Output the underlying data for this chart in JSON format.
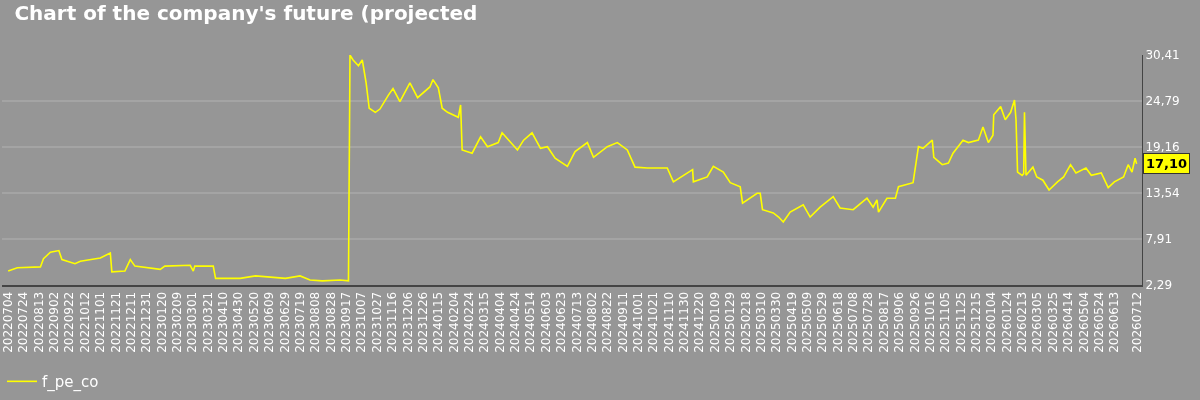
{
  "chart_data": {
    "type": "line",
    "title": "Chart of the company's future (projected",
    "x": [
      "2022-07-04",
      "2022-07-16",
      "2022-08-15",
      "2022-08-19",
      "2022-08-28",
      "2022-09-08",
      "2022-09-12",
      "2022-09-29",
      "2022-10-06",
      "2022-11-01",
      "2022-11-14",
      "2022-11-16",
      "2022-12-03",
      "2022-12-10",
      "2022-12-16",
      "2023-01-18",
      "2023-01-24",
      "2023-02-26",
      "2023-03-02",
      "2023-03-04",
      "2023-03-28",
      "2023-03-31",
      "2023-05-02",
      "2023-05-22",
      "2023-06-30",
      "2023-07-19",
      "2023-08-01",
      "2023-08-17",
      "2023-09-09",
      "2023-09-20",
      "2023-09-22",
      "2023-09-26",
      "2023-10-03",
      "2023-10-08",
      "2023-10-13",
      "2023-10-17",
      "2023-10-25",
      "2023-10-31",
      "2023-11-11",
      "2023-11-17",
      "2023-11-26",
      "2023-12-09",
      "2023-12-19",
      "2024-01-04",
      "2024-01-08",
      "2024-01-15",
      "2024-01-20",
      "2024-01-27",
      "2024-02-10",
      "2024-02-13",
      "2024-02-15",
      "2024-02-28",
      "2024-03-10",
      "2024-03-19",
      "2024-04-02",
      "2024-04-07",
      "2024-04-27",
      "2024-05-05",
      "2024-05-16",
      "2024-05-27",
      "2024-06-05",
      "2024-06-15",
      "2024-07-01",
      "2024-07-11",
      "2024-07-27",
      "2024-08-04",
      "2024-08-22",
      "2024-09-04",
      "2024-09-17",
      "2024-09-27",
      "2024-10-13",
      "2024-11-08",
      "2024-11-16",
      "2024-12-11",
      "2024-12-12",
      "2024-12-30",
      "2025-01-07",
      "2025-01-20",
      "2025-01-29",
      "2025-02-11",
      "2025-02-14",
      "2025-03-05",
      "2025-03-09",
      "2025-03-12",
      "2025-03-26",
      "2025-04-02",
      "2025-04-08",
      "2025-04-17",
      "2025-05-04",
      "2025-05-13",
      "2025-05-26",
      "2025-06-12",
      "2025-06-21",
      "2025-07-08",
      "2025-07-26",
      "2025-08-03",
      "2025-08-08",
      "2025-08-10",
      "2025-08-21",
      "2025-09-01",
      "2025-09-05",
      "2025-09-24",
      "2025-10-01",
      "2025-10-07",
      "2025-10-19",
      "2025-10-21",
      "2025-11-01",
      "2025-11-09",
      "2025-11-15",
      "2025-11-28",
      "2025-12-05",
      "2025-12-18",
      "2025-12-24",
      "2025-12-31",
      "2026-01-06",
      "2026-01-07",
      "2026-01-16",
      "2026-01-22",
      "2026-01-29",
      "2026-02-03",
      "2026-02-05",
      "2026-02-07",
      "2026-02-13",
      "2026-02-15",
      "2026-02-16",
      "2026-02-18",
      "2026-02-27",
      "2026-03-04",
      "2026-03-12",
      "2026-03-20",
      "2026-03-31",
      "2026-04-08",
      "2026-04-17",
      "2026-04-24",
      "2026-05-07",
      "2026-05-14",
      "2026-05-27",
      "2026-06-05",
      "2026-06-13",
      "2026-06-25",
      "2026-07-01",
      "2026-07-06",
      "2026-07-10",
      "2026-07-12"
    ],
    "series": [
      {
        "name": "f_pe_co",
        "color": "#ffff00",
        "values": [
          4.0,
          4.4,
          4.5,
          5.5,
          6.3,
          6.5,
          5.4,
          4.9,
          5.2,
          5.6,
          6.2,
          3.9,
          4.0,
          5.4,
          4.6,
          4.2,
          4.6,
          4.7,
          4.0,
          4.6,
          4.6,
          3.1,
          3.1,
          3.4,
          3.1,
          3.4,
          2.9,
          2.8,
          2.9,
          2.8,
          30.4,
          29.8,
          29.1,
          29.8,
          27.0,
          23.9,
          23.4,
          23.8,
          25.5,
          26.3,
          24.7,
          27.0,
          25.2,
          26.5,
          27.4,
          26.4,
          23.9,
          23.4,
          22.8,
          24.3,
          18.8,
          18.4,
          20.4,
          19.2,
          19.7,
          20.9,
          18.8,
          20.0,
          20.9,
          19.0,
          19.2,
          17.8,
          16.8,
          18.6,
          19.7,
          17.9,
          19.2,
          19.7,
          18.8,
          16.7,
          16.6,
          16.6,
          14.9,
          16.4,
          14.9,
          15.5,
          16.8,
          16.1,
          14.8,
          14.3,
          12.3,
          13.5,
          13.5,
          11.5,
          11.1,
          10.6,
          10.0,
          11.2,
          12.1,
          10.6,
          11.8,
          13.1,
          11.7,
          11.5,
          12.9,
          11.8,
          12.7,
          11.2,
          12.9,
          12.9,
          14.3,
          14.8,
          19.2,
          19.0,
          20.0,
          17.9,
          17.0,
          17.2,
          18.4,
          20.0,
          19.7,
          20.0,
          21.6,
          19.7,
          20.6,
          23.1,
          24.1,
          22.5,
          23.4,
          24.9,
          22.5,
          16.1,
          15.7,
          15.9,
          23.4,
          15.7,
          16.7,
          15.5,
          15.1,
          13.9,
          14.9,
          15.5,
          17.0,
          16.0,
          16.6,
          15.7,
          16.0,
          14.2,
          14.9,
          15.5,
          17.0,
          16.1,
          17.8,
          17.1
        ]
      }
    ],
    "annotations": [
      {
        "text": "17,10",
        "x": "2026-07-12",
        "y": 17.1
      }
    ],
    "xlim": [
      "2022-06-26",
      "2026-07-19"
    ],
    "xticks": [
      {
        "value": "2022-07-04",
        "label": "20220704"
      },
      {
        "value": "2022-07-24",
        "label": "20220724"
      },
      {
        "value": "2022-08-13",
        "label": "20220813"
      },
      {
        "value": "2022-09-02",
        "label": "20220902"
      },
      {
        "value": "2022-09-22",
        "label": "20220922"
      },
      {
        "value": "2022-10-12",
        "label": "20221012"
      },
      {
        "value": "2022-11-01",
        "label": "20221101"
      },
      {
        "value": "2022-11-21",
        "label": "20221121"
      },
      {
        "value": "2022-12-11",
        "label": "20221211"
      },
      {
        "value": "2022-12-31",
        "label": "20221231"
      },
      {
        "value": "2023-01-20",
        "label": "20230120"
      },
      {
        "value": "2023-02-09",
        "label": "20230209"
      },
      {
        "value": "2023-03-01",
        "label": "20230301"
      },
      {
        "value": "2023-03-21",
        "label": "20230321"
      },
      {
        "value": "2023-04-10",
        "label": "20230410"
      },
      {
        "value": "2023-04-30",
        "label": "20230430"
      },
      {
        "value": "2023-05-20",
        "label": "20230520"
      },
      {
        "value": "2023-06-09",
        "label": "20230609"
      },
      {
        "value": "2023-06-29",
        "label": "20230629"
      },
      {
        "value": "2023-07-19",
        "label": "20230719"
      },
      {
        "value": "2023-08-08",
        "label": "20230808"
      },
      {
        "value": "2023-08-28",
        "label": "20230828"
      },
      {
        "value": "2023-09-17",
        "label": "20230917"
      },
      {
        "value": "2023-10-07",
        "label": "20231007"
      },
      {
        "value": "2023-10-27",
        "label": "20231027"
      },
      {
        "value": "2023-11-16",
        "label": "20231116"
      },
      {
        "value": "2023-12-06",
        "label": "20231206"
      },
      {
        "value": "2023-12-26",
        "label": "20231226"
      },
      {
        "value": "2024-01-15",
        "label": "20240115"
      },
      {
        "value": "2024-02-04",
        "label": "20240204"
      },
      {
        "value": "2024-02-24",
        "label": "20240224"
      },
      {
        "value": "2024-03-15",
        "label": "20240315"
      },
      {
        "value": "2024-04-04",
        "label": "20240404"
      },
      {
        "value": "2024-04-24",
        "label": "20240424"
      },
      {
        "value": "2024-05-14",
        "label": "20240514"
      },
      {
        "value": "2024-06-03",
        "label": "20240603"
      },
      {
        "value": "2024-06-23",
        "label": "20240623"
      },
      {
        "value": "2024-07-13",
        "label": "20240713"
      },
      {
        "value": "2024-08-02",
        "label": "20240802"
      },
      {
        "value": "2024-08-22",
        "label": "20240822"
      },
      {
        "value": "2024-09-11",
        "label": "20240911"
      },
      {
        "value": "2024-10-01",
        "label": "20241001"
      },
      {
        "value": "2024-10-21",
        "label": "20241021"
      },
      {
        "value": "2024-11-10",
        "label": "20241110"
      },
      {
        "value": "2024-11-30",
        "label": "20241130"
      },
      {
        "value": "2024-12-20",
        "label": "20241220"
      },
      {
        "value": "2025-01-09",
        "label": "20250109"
      },
      {
        "value": "2025-01-29",
        "label": "20250129"
      },
      {
        "value": "2025-02-18",
        "label": "20250218"
      },
      {
        "value": "2025-03-10",
        "label": "20250310"
      },
      {
        "value": "2025-03-30",
        "label": "20250330"
      },
      {
        "value": "2025-04-19",
        "label": "20250419"
      },
      {
        "value": "2025-05-09",
        "label": "20250509"
      },
      {
        "value": "2025-05-29",
        "label": "20250529"
      },
      {
        "value": "2025-06-18",
        "label": "20250618"
      },
      {
        "value": "2025-07-08",
        "label": "20250708"
      },
      {
        "value": "2025-07-28",
        "label": "20250728"
      },
      {
        "value": "2025-08-17",
        "label": "20250817"
      },
      {
        "value": "2025-09-06",
        "label": "20250906"
      },
      {
        "value": "2025-09-26",
        "label": "20250926"
      },
      {
        "value": "2025-10-16",
        "label": "20251016"
      },
      {
        "value": "2025-11-05",
        "label": "20251105"
      },
      {
        "value": "2025-11-25",
        "label": "20251125"
      },
      {
        "value": "2025-12-15",
        "label": "20251215"
      },
      {
        "value": "2026-01-04",
        "label": "20260104"
      },
      {
        "value": "2026-01-24",
        "label": "20260124"
      },
      {
        "value": "2026-02-13",
        "label": "20260213"
      },
      {
        "value": "2026-03-05",
        "label": "20260305"
      },
      {
        "value": "2026-03-25",
        "label": "20260325"
      },
      {
        "value": "2026-04-14",
        "label": "20260414"
      },
      {
        "value": "2026-05-04",
        "label": "20260504"
      },
      {
        "value": "2026-05-24",
        "label": "20260524"
      },
      {
        "value": "2026-06-13",
        "label": "20260613"
      },
      {
        "value": "2026-07-12",
        "label": "20260712"
      }
    ],
    "ylim": [
      2.29,
      30.41
    ],
    "yticks": [
      {
        "value": 2.29,
        "label": "2,29"
      },
      {
        "value": 7.91,
        "label": "7,91"
      },
      {
        "value": 13.54,
        "label": "13,54"
      },
      {
        "value": 19.16,
        "label": "19,16"
      },
      {
        "value": 24.79,
        "label": "24,79"
      },
      {
        "value": 30.41,
        "label": "30,41"
      }
    ],
    "grid": "y",
    "legend": "bottom left"
  }
}
